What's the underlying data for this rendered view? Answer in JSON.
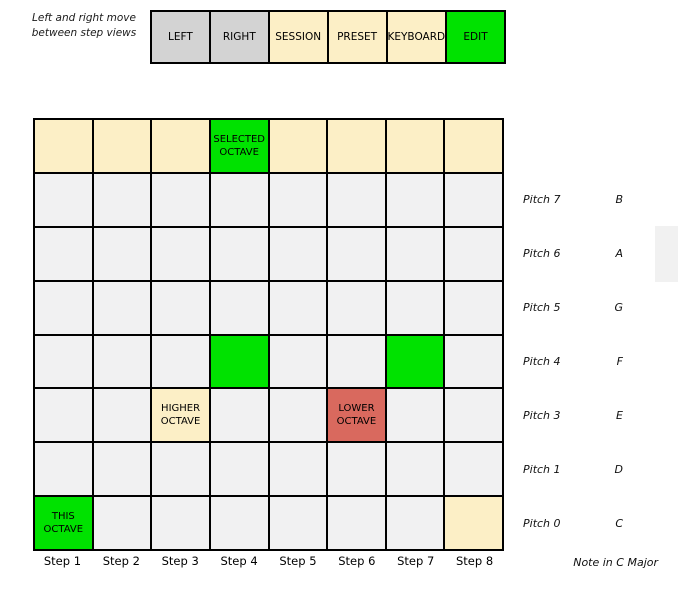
{
  "intro": {
    "line1": "Left and right move",
    "line2": "between step views"
  },
  "toolbar": {
    "buttons": [
      {
        "label": "LEFT",
        "type": "gray"
      },
      {
        "label": "RIGHT",
        "type": "gray"
      },
      {
        "label": "SESSION",
        "type": "cream"
      },
      {
        "label": "PRESET",
        "type": "cream"
      },
      {
        "label": "KEYBOARD",
        "type": "cream"
      },
      {
        "label": "EDIT",
        "type": "green"
      }
    ]
  },
  "grid": {
    "rows": 8,
    "columns": 8,
    "cells": [
      [
        {
          "c": "cream"
        },
        {
          "c": "cream"
        },
        {
          "c": "cream"
        },
        {
          "c": "green",
          "label": "SELECTED OCTAVE"
        },
        {
          "c": "cream"
        },
        {
          "c": "cream"
        },
        {
          "c": "cream"
        },
        {
          "c": "cream"
        }
      ],
      [
        {
          "c": "gray"
        },
        {
          "c": "gray"
        },
        {
          "c": "gray"
        },
        {
          "c": "gray"
        },
        {
          "c": "gray"
        },
        {
          "c": "gray"
        },
        {
          "c": "gray"
        },
        {
          "c": "gray"
        }
      ],
      [
        {
          "c": "gray"
        },
        {
          "c": "gray"
        },
        {
          "c": "gray"
        },
        {
          "c": "gray"
        },
        {
          "c": "gray"
        },
        {
          "c": "gray"
        },
        {
          "c": "gray"
        },
        {
          "c": "gray"
        }
      ],
      [
        {
          "c": "gray"
        },
        {
          "c": "gray"
        },
        {
          "c": "gray"
        },
        {
          "c": "gray"
        },
        {
          "c": "gray"
        },
        {
          "c": "gray"
        },
        {
          "c": "gray"
        },
        {
          "c": "gray"
        }
      ],
      [
        {
          "c": "gray"
        },
        {
          "c": "gray"
        },
        {
          "c": "gray"
        },
        {
          "c": "green"
        },
        {
          "c": "gray"
        },
        {
          "c": "gray"
        },
        {
          "c": "green"
        },
        {
          "c": "gray"
        }
      ],
      [
        {
          "c": "gray"
        },
        {
          "c": "gray"
        },
        {
          "c": "cream",
          "label": "HIGHER OCTAVE"
        },
        {
          "c": "gray"
        },
        {
          "c": "gray"
        },
        {
          "c": "red",
          "label": "LOWER OCTAVE"
        },
        {
          "c": "gray"
        },
        {
          "c": "gray"
        }
      ],
      [
        {
          "c": "gray"
        },
        {
          "c": "gray"
        },
        {
          "c": "gray"
        },
        {
          "c": "gray"
        },
        {
          "c": "gray"
        },
        {
          "c": "gray"
        },
        {
          "c": "gray"
        },
        {
          "c": "gray"
        }
      ],
      [
        {
          "c": "green",
          "label": "THIS OCTAVE"
        },
        {
          "c": "gray"
        },
        {
          "c": "gray"
        },
        {
          "c": "gray"
        },
        {
          "c": "gray"
        },
        {
          "c": "gray"
        },
        {
          "c": "gray"
        },
        {
          "c": "cream"
        }
      ]
    ]
  },
  "pitch_labels": [
    {
      "pitch": "Pitch 7",
      "note": "B"
    },
    {
      "pitch": "Pitch 6",
      "note": "A"
    },
    {
      "pitch": "Pitch 5",
      "note": "G"
    },
    {
      "pitch": "Pitch 4",
      "note": "F"
    },
    {
      "pitch": "Pitch 3",
      "note": "E"
    },
    {
      "pitch": "Pitch 1",
      "note": "D"
    },
    {
      "pitch": "Pitch 0",
      "note": "C"
    }
  ],
  "step_labels": [
    "Step 1",
    "Step 2",
    "Step 3",
    "Step 4",
    "Step 5",
    "Step 6",
    "Step 7",
    "Step 8"
  ],
  "footer": {
    "note_scale": "Note in C Major"
  },
  "colors": {
    "cream": "#fcefc6",
    "gray": "#f1f1f2",
    "green": "#00e200",
    "red": "#d9695e",
    "button_gray": "#d3d3d3",
    "scrollbar": "#f1f1f1",
    "border": "#000000"
  }
}
